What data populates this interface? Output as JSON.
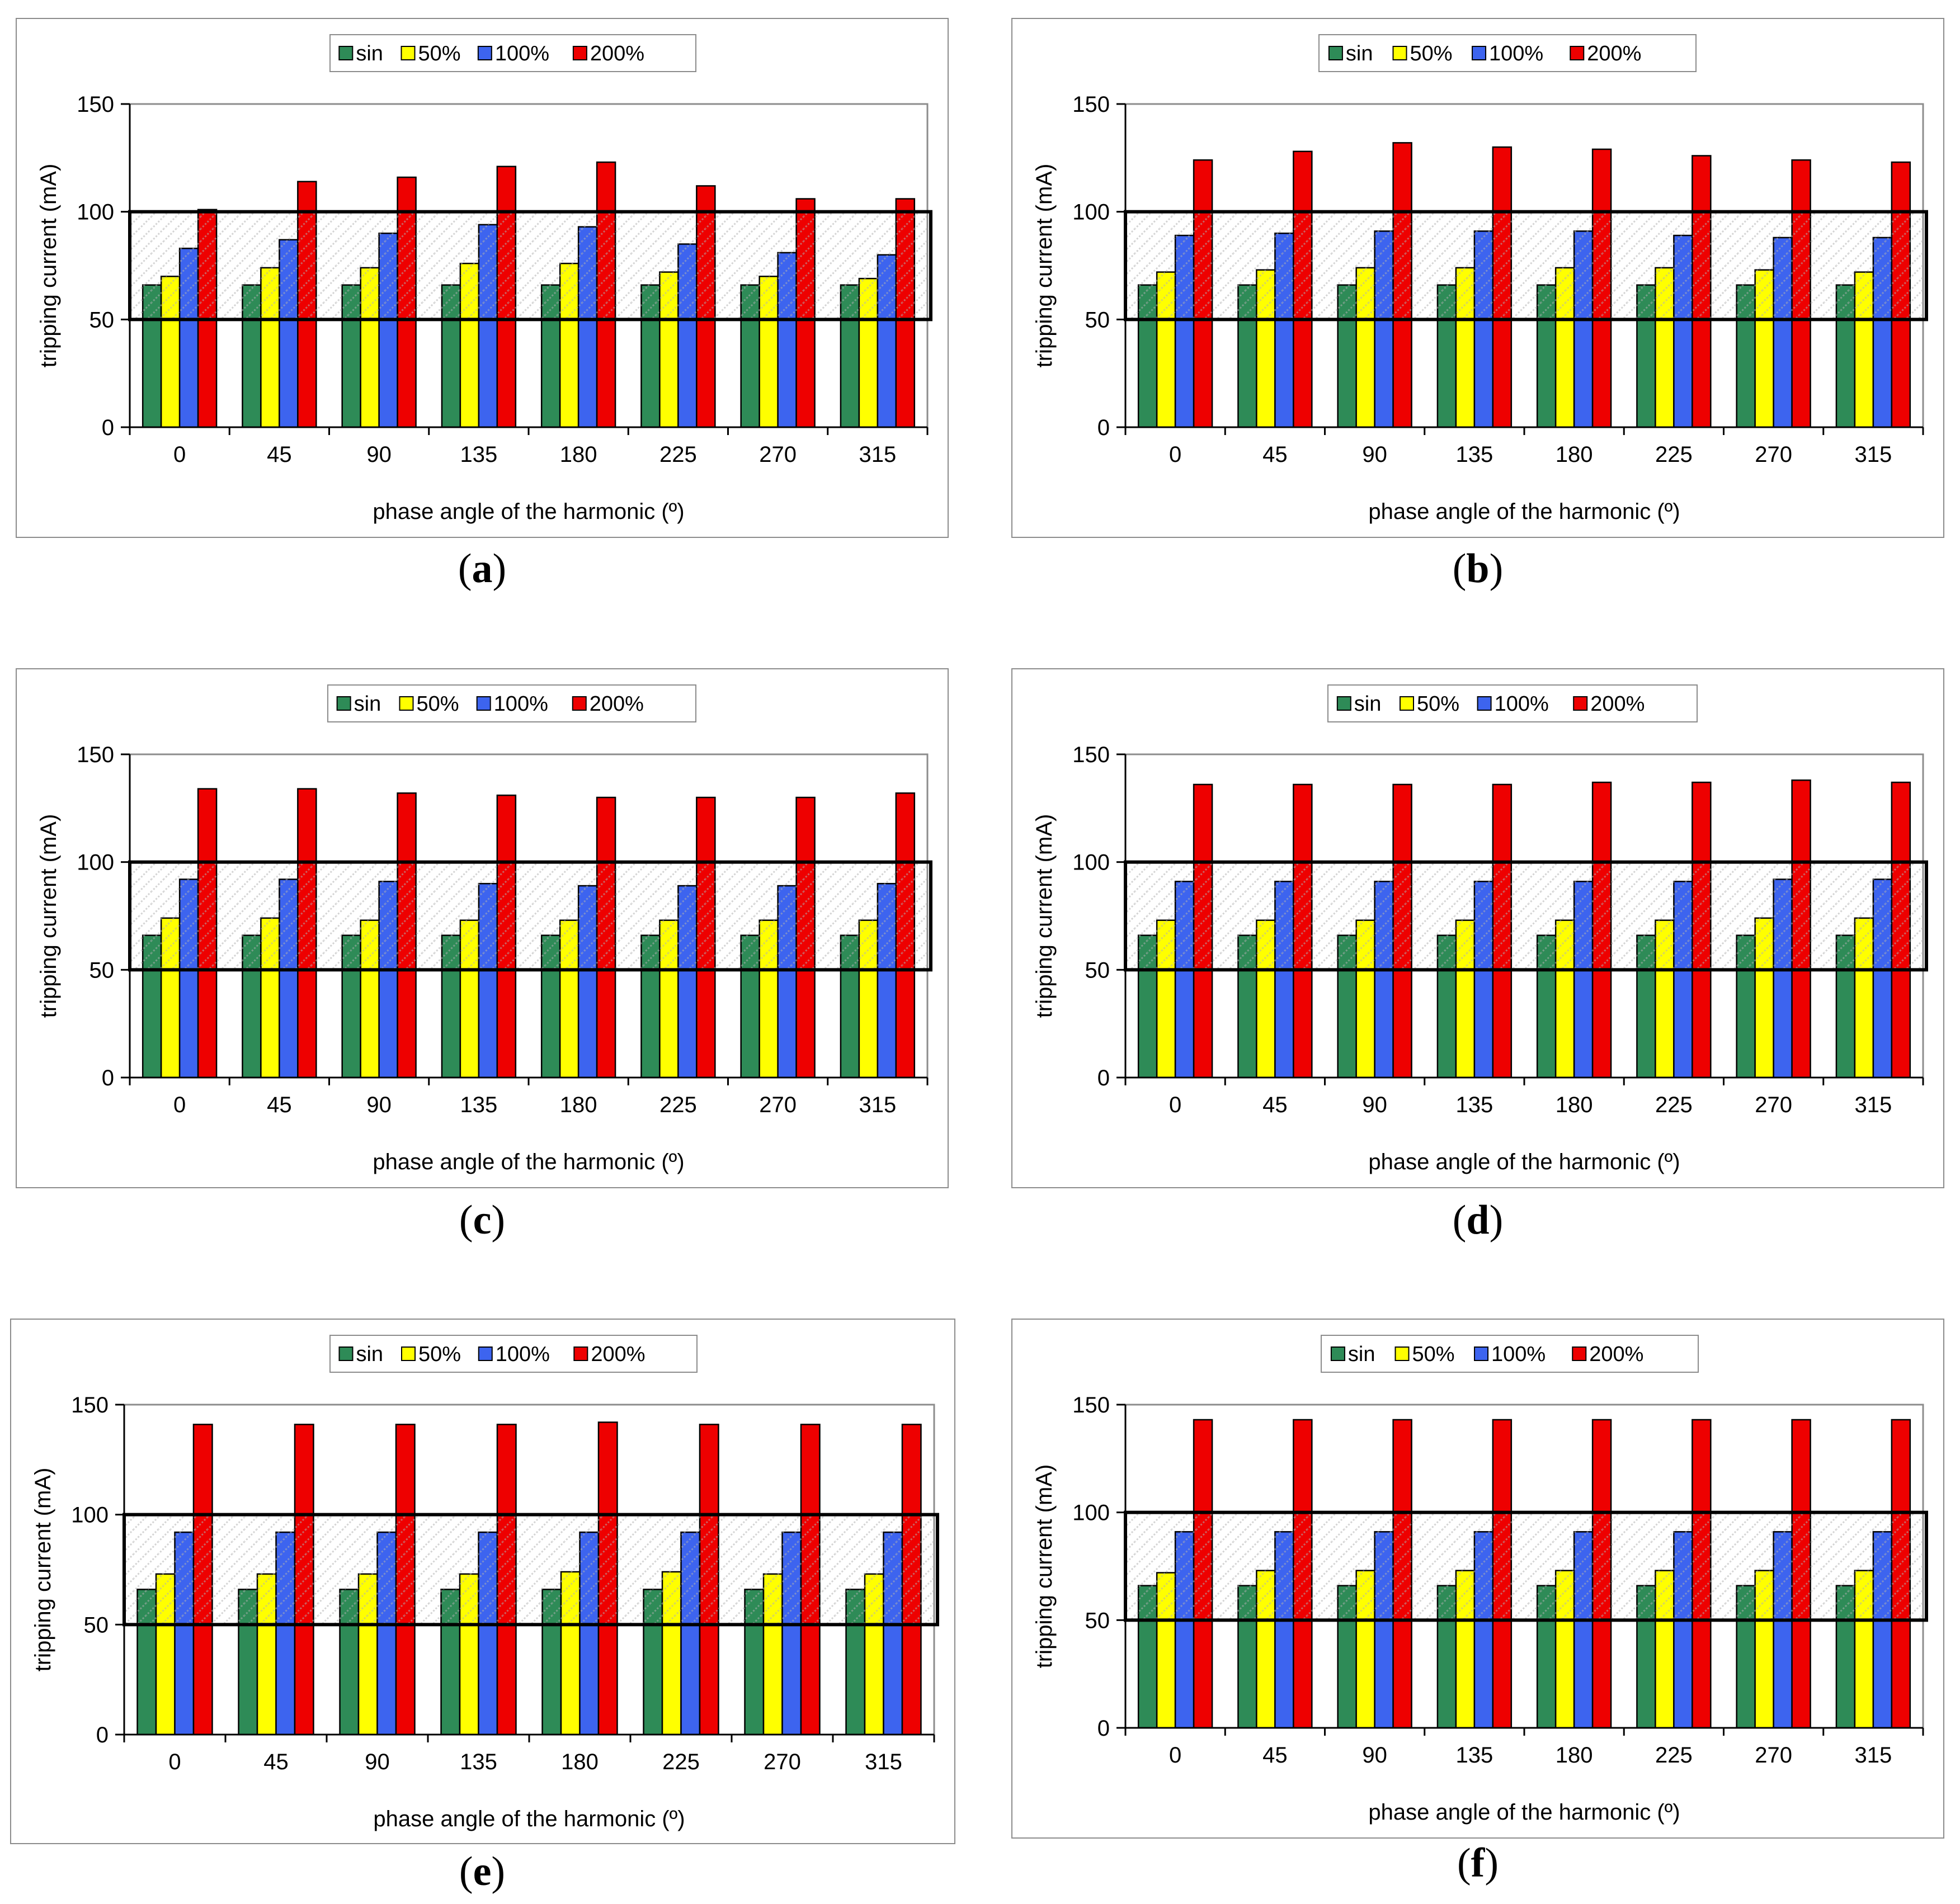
{
  "colors": {
    "sin": "#2e8b57",
    "p50": "#ffff00",
    "p100": "#3d64ef",
    "p200": "#ee0000"
  },
  "chart_data": [
    {
      "panel": "a",
      "caption_letter": "a",
      "type": "bar",
      "title": "",
      "xlabel": "phase angle of the harmonic (º)",
      "ylabel": "tripping current (mA)",
      "ylim": [
        0,
        150
      ],
      "yticks": [
        "0",
        "50",
        "100",
        "150"
      ],
      "band": [
        50,
        100
      ],
      "legend": "top",
      "categories": [
        "0",
        "45",
        "90",
        "135",
        "180",
        "225",
        "270",
        "315"
      ],
      "series": [
        {
          "name": "sin",
          "values": [
            66,
            66,
            66,
            66,
            66,
            66,
            66,
            66
          ]
        },
        {
          "name": "50%",
          "values": [
            70,
            74,
            74,
            76,
            76,
            72,
            70,
            69
          ]
        },
        {
          "name": "100%",
          "values": [
            83,
            87,
            90,
            94,
            93,
            85,
            81,
            80
          ]
        },
        {
          "name": "200%",
          "values": [
            101,
            114,
            116,
            121,
            123,
            112,
            106,
            106
          ]
        }
      ]
    },
    {
      "panel": "b",
      "caption_letter": "b",
      "type": "bar",
      "title": "",
      "xlabel": "phase angle of the harmonic (º)",
      "ylabel": "tripping current (mA)",
      "ylim": [
        0,
        150
      ],
      "yticks": [
        "0",
        "50",
        "100",
        "150"
      ],
      "band": [
        50,
        100
      ],
      "legend": "top",
      "categories": [
        "0",
        "45",
        "90",
        "135",
        "180",
        "225",
        "270",
        "315"
      ],
      "series": [
        {
          "name": "sin",
          "values": [
            66,
            66,
            66,
            66,
            66,
            66,
            66,
            66
          ]
        },
        {
          "name": "50%",
          "values": [
            72,
            73,
            74,
            74,
            74,
            74,
            73,
            72
          ]
        },
        {
          "name": "100%",
          "values": [
            89,
            90,
            91,
            91,
            91,
            89,
            88,
            88
          ]
        },
        {
          "name": "200%",
          "values": [
            124,
            128,
            132,
            130,
            129,
            126,
            124,
            123
          ]
        }
      ]
    },
    {
      "panel": "c",
      "caption_letter": "c",
      "type": "bar",
      "title": "",
      "xlabel": "phase angle of the harmonic (º)",
      "ylabel": "tripping current (mA)",
      "ylim": [
        0,
        150
      ],
      "yticks": [
        "0",
        "50",
        "100",
        "150"
      ],
      "band": [
        50,
        100
      ],
      "legend": "top",
      "categories": [
        "0",
        "45",
        "90",
        "135",
        "180",
        "225",
        "270",
        "315"
      ],
      "series": [
        {
          "name": "sin",
          "values": [
            66,
            66,
            66,
            66,
            66,
            66,
            66,
            66
          ]
        },
        {
          "name": "50%",
          "values": [
            74,
            74,
            73,
            73,
            73,
            73,
            73,
            73
          ]
        },
        {
          "name": "100%",
          "values": [
            92,
            92,
            91,
            90,
            89,
            89,
            89,
            90
          ]
        },
        {
          "name": "200%",
          "values": [
            134,
            134,
            132,
            131,
            130,
            130,
            130,
            132
          ]
        }
      ]
    },
    {
      "panel": "d",
      "caption_letter": "d",
      "type": "bar",
      "title": "",
      "xlabel": "phase angle of the harmonic (º)",
      "ylabel": "tripping current (mA)",
      "ylim": [
        0,
        150
      ],
      "yticks": [
        "0",
        "50",
        "100",
        "150"
      ],
      "band": [
        50,
        100
      ],
      "legend": "top",
      "categories": [
        "0",
        "45",
        "90",
        "135",
        "180",
        "225",
        "270",
        "315"
      ],
      "series": [
        {
          "name": "sin",
          "values": [
            66,
            66,
            66,
            66,
            66,
            66,
            66,
            66
          ]
        },
        {
          "name": "50%",
          "values": [
            73,
            73,
            73,
            73,
            73,
            73,
            74,
            74
          ]
        },
        {
          "name": "100%",
          "values": [
            91,
            91,
            91,
            91,
            91,
            91,
            92,
            92
          ]
        },
        {
          "name": "200%",
          "values": [
            136,
            136,
            136,
            136,
            137,
            137,
            138,
            137
          ]
        }
      ]
    },
    {
      "panel": "e",
      "caption_letter": "e",
      "type": "bar",
      "title": "",
      "xlabel": "phase angle of the harmonic (º)",
      "ylabel": "tripping current (mA)",
      "ylim": [
        0,
        150
      ],
      "yticks": [
        "0",
        "50",
        "100",
        "150"
      ],
      "band": [
        50,
        100
      ],
      "legend": "top",
      "categories": [
        "0",
        "45",
        "90",
        "135",
        "180",
        "225",
        "270",
        "315"
      ],
      "series": [
        {
          "name": "sin",
          "values": [
            66,
            66,
            66,
            66,
            66,
            66,
            66,
            66
          ]
        },
        {
          "name": "50%",
          "values": [
            73,
            73,
            73,
            73,
            74,
            74,
            73,
            73
          ]
        },
        {
          "name": "100%",
          "values": [
            92,
            92,
            92,
            92,
            92,
            92,
            92,
            92
          ]
        },
        {
          "name": "200%",
          "values": [
            141,
            141,
            141,
            141,
            142,
            141,
            141,
            141
          ]
        }
      ]
    },
    {
      "panel": "f",
      "caption_letter": "f",
      "type": "bar",
      "title": "",
      "xlabel": "phase angle of the harmonic (º)",
      "ylabel": "tripping current (mA)",
      "ylim": [
        0,
        150
      ],
      "yticks": [
        "0",
        "50",
        "100",
        "150"
      ],
      "band": [
        50,
        100
      ],
      "legend": "top",
      "categories": [
        "0",
        "45",
        "90",
        "135",
        "180",
        "225",
        "270",
        "315"
      ],
      "series": [
        {
          "name": "sin",
          "values": [
            66,
            66,
            66,
            66,
            66,
            66,
            66,
            66
          ]
        },
        {
          "name": "50%",
          "values": [
            72,
            73,
            73,
            73,
            73,
            73,
            73,
            73
          ]
        },
        {
          "name": "100%",
          "values": [
            91,
            91,
            91,
            91,
            91,
            91,
            91,
            91
          ]
        },
        {
          "name": "200%",
          "values": [
            143,
            143,
            143,
            143,
            143,
            143,
            143,
            143
          ]
        }
      ]
    }
  ]
}
